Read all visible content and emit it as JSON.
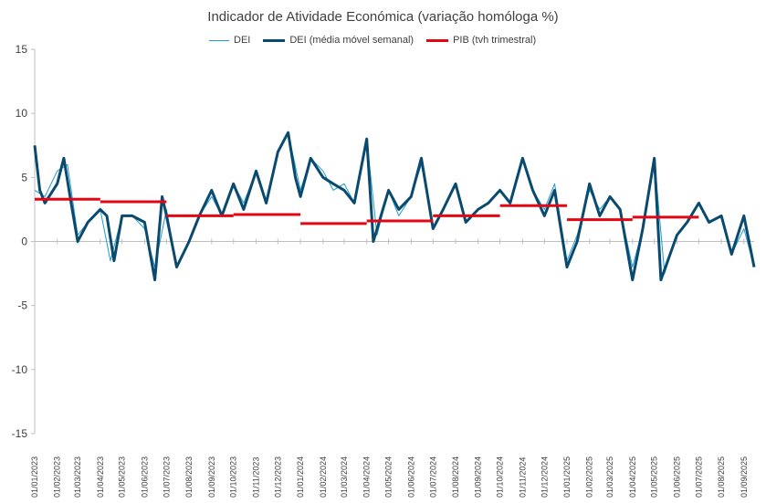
{
  "chart_data": {
    "type": "line",
    "title": "Indicador de Atividade Económica (variação homóloga %)",
    "xlabel": "",
    "ylabel": "",
    "ylim": [
      -15,
      15
    ],
    "yticks": [
      15,
      10,
      5,
      0,
      -5,
      -10,
      -15
    ],
    "x_tick_labels": [
      "01/01/2023",
      "01/02/2023",
      "01/03/2023",
      "01/04/2023",
      "01/05/2023",
      "01/06/2023",
      "01/07/2023",
      "01/08/2023",
      "01/09/2023",
      "01/10/2023",
      "01/11/2023",
      "01/12/2023",
      "01/01/2024",
      "01/02/2024",
      "01/03/2024",
      "01/04/2024",
      "01/05/2024",
      "01/06/2024",
      "01/07/2024",
      "01/08/2024",
      "01/09/2024",
      "01/10/2024",
      "01/11/2024",
      "01/12/2024",
      "01/01/2025",
      "01/02/2025",
      "01/03/2025",
      "01/04/2025",
      "01/05/2025",
      "01/06/2025",
      "01/07/2025",
      "01/08/2025",
      "01/09/2025"
    ],
    "x_start": "01/01/2023",
    "x_end": "15/09/2025",
    "legend_position": "top",
    "grid": false,
    "series": [
      {
        "name": "DEI",
        "style": "thin",
        "color": "#1E9BCF",
        "points": [
          [
            "01/01/2023",
            4.0
          ],
          [
            "15/01/2023",
            3.5
          ],
          [
            "01/02/2023",
            5.5
          ],
          [
            "15/02/2023",
            6.0
          ],
          [
            "01/03/2023",
            0.5
          ],
          [
            "15/03/2023",
            1.5
          ],
          [
            "01/04/2023",
            2.5
          ],
          [
            "15/04/2023",
            -1.5
          ],
          [
            "01/05/2023",
            2.0
          ],
          [
            "15/05/2023",
            2.0
          ],
          [
            "01/06/2023",
            1.0
          ],
          [
            "15/06/2023",
            -2.0
          ],
          [
            "01/07/2023",
            2.5
          ],
          [
            "15/07/2023",
            -2.0
          ],
          [
            "01/08/2023",
            0.0
          ],
          [
            "15/08/2023",
            2.0
          ],
          [
            "01/09/2023",
            3.5
          ],
          [
            "15/09/2023",
            2.0
          ],
          [
            "01/10/2023",
            4.5
          ],
          [
            "15/10/2023",
            3.0
          ],
          [
            "01/11/2023",
            5.5
          ],
          [
            "15/11/2023",
            3.0
          ],
          [
            "01/12/2023",
            7.0
          ],
          [
            "15/12/2023",
            8.5
          ],
          [
            "01/01/2024",
            4.0
          ],
          [
            "15/01/2024",
            6.5
          ],
          [
            "01/02/2024",
            5.5
          ],
          [
            "15/02/2024",
            4.0
          ],
          [
            "01/03/2024",
            4.5
          ],
          [
            "15/03/2024",
            3.0
          ],
          [
            "01/04/2024",
            8.0
          ],
          [
            "15/04/2024",
            0.5
          ],
          [
            "01/05/2024",
            4.0
          ],
          [
            "15/05/2024",
            2.0
          ],
          [
            "01/06/2024",
            3.5
          ],
          [
            "15/06/2024",
            6.0
          ],
          [
            "01/07/2024",
            1.0
          ],
          [
            "15/07/2024",
            2.5
          ],
          [
            "01/08/2024",
            4.5
          ],
          [
            "15/08/2024",
            1.5
          ],
          [
            "01/09/2024",
            2.5
          ],
          [
            "15/09/2024",
            3.0
          ],
          [
            "01/10/2024",
            4.0
          ],
          [
            "15/10/2024",
            3.0
          ],
          [
            "01/11/2024",
            6.5
          ],
          [
            "15/11/2024",
            4.0
          ],
          [
            "01/12/2024",
            2.5
          ],
          [
            "15/12/2024",
            4.5
          ],
          [
            "01/01/2025",
            -1.5
          ],
          [
            "15/01/2025",
            0.5
          ],
          [
            "01/02/2025",
            4.0
          ],
          [
            "15/02/2025",
            2.5
          ],
          [
            "01/03/2025",
            3.5
          ],
          [
            "15/03/2025",
            2.5
          ],
          [
            "01/04/2025",
            -2.0
          ],
          [
            "15/04/2025",
            1.0
          ],
          [
            "01/05/2025",
            6.5
          ],
          [
            "15/05/2025",
            -2.5
          ],
          [
            "01/06/2025",
            0.5
          ],
          [
            "15/06/2025",
            1.5
          ],
          [
            "01/07/2025",
            3.0
          ],
          [
            "15/07/2025",
            1.5
          ],
          [
            "01/08/2025",
            2.0
          ],
          [
            "15/08/2025",
            -1.0
          ],
          [
            "01/09/2025",
            1.0
          ],
          [
            "15/09/2025",
            -2.0
          ]
        ]
      },
      {
        "name": "DEI (média móvel semanal)",
        "style": "thick",
        "color": "#0A4A6E",
        "points": [
          [
            "01/01/2023",
            7.5
          ],
          [
            "08/01/2023",
            4.0
          ],
          [
            "15/01/2023",
            3.0
          ],
          [
            "01/02/2023",
            4.5
          ],
          [
            "10/02/2023",
            6.5
          ],
          [
            "20/02/2023",
            3.0
          ],
          [
            "01/03/2023",
            0.0
          ],
          [
            "15/03/2023",
            1.5
          ],
          [
            "01/04/2023",
            2.5
          ],
          [
            "10/04/2023",
            2.0
          ],
          [
            "20/04/2023",
            -1.5
          ],
          [
            "01/05/2023",
            2.0
          ],
          [
            "15/05/2023",
            2.0
          ],
          [
            "01/06/2023",
            1.5
          ],
          [
            "15/06/2023",
            -3.0
          ],
          [
            "25/06/2023",
            3.5
          ],
          [
            "01/07/2023",
            2.0
          ],
          [
            "15/07/2023",
            -2.0
          ],
          [
            "01/08/2023",
            0.0
          ],
          [
            "15/08/2023",
            2.0
          ],
          [
            "01/09/2023",
            4.0
          ],
          [
            "15/09/2023",
            2.0
          ],
          [
            "01/10/2023",
            4.5
          ],
          [
            "15/10/2023",
            2.5
          ],
          [
            "01/11/2023",
            5.5
          ],
          [
            "15/11/2023",
            3.0
          ],
          [
            "01/12/2023",
            7.0
          ],
          [
            "15/12/2023",
            8.5
          ],
          [
            "25/12/2023",
            5.0
          ],
          [
            "01/01/2024",
            3.5
          ],
          [
            "15/01/2024",
            6.5
          ],
          [
            "01/02/2024",
            5.0
          ],
          [
            "15/02/2024",
            4.5
          ],
          [
            "01/03/2024",
            4.0
          ],
          [
            "15/03/2024",
            3.0
          ],
          [
            "01/04/2024",
            8.0
          ],
          [
            "10/04/2024",
            0.0
          ],
          [
            "01/05/2024",
            4.0
          ],
          [
            "15/05/2024",
            2.5
          ],
          [
            "01/06/2024",
            3.5
          ],
          [
            "15/06/2024",
            6.5
          ],
          [
            "01/07/2024",
            1.0
          ],
          [
            "15/07/2024",
            2.5
          ],
          [
            "01/08/2024",
            4.5
          ],
          [
            "15/08/2024",
            1.5
          ],
          [
            "01/09/2024",
            2.5
          ],
          [
            "15/09/2024",
            3.0
          ],
          [
            "01/10/2024",
            4.0
          ],
          [
            "15/10/2024",
            3.0
          ],
          [
            "01/11/2024",
            6.5
          ],
          [
            "15/11/2024",
            4.0
          ],
          [
            "01/12/2024",
            2.0
          ],
          [
            "15/12/2024",
            4.0
          ],
          [
            "01/01/2025",
            -2.0
          ],
          [
            "15/01/2025",
            0.0
          ],
          [
            "01/02/2025",
            4.5
          ],
          [
            "15/02/2025",
            2.0
          ],
          [
            "01/03/2025",
            3.5
          ],
          [
            "15/03/2025",
            2.5
          ],
          [
            "01/04/2025",
            -3.0
          ],
          [
            "15/04/2025",
            1.0
          ],
          [
            "01/05/2025",
            6.5
          ],
          [
            "10/05/2025",
            -3.0
          ],
          [
            "01/06/2025",
            0.5
          ],
          [
            "15/06/2025",
            1.5
          ],
          [
            "01/07/2025",
            3.0
          ],
          [
            "15/07/2025",
            1.5
          ],
          [
            "01/08/2025",
            2.0
          ],
          [
            "15/08/2025",
            -1.0
          ],
          [
            "01/09/2025",
            2.0
          ],
          [
            "15/09/2025",
            -2.0
          ]
        ]
      },
      {
        "name": "PIB (tvh trimestral)",
        "style": "step",
        "color": "#E30613",
        "segments": [
          {
            "from": "01/01/2023",
            "to": "01/04/2023",
            "value": 3.3
          },
          {
            "from": "01/04/2023",
            "to": "01/07/2023",
            "value": 3.1
          },
          {
            "from": "01/07/2023",
            "to": "01/10/2023",
            "value": 2.0
          },
          {
            "from": "01/10/2023",
            "to": "01/01/2024",
            "value": 2.1
          },
          {
            "from": "01/01/2024",
            "to": "01/04/2024",
            "value": 1.4
          },
          {
            "from": "01/04/2024",
            "to": "01/07/2024",
            "value": 1.6
          },
          {
            "from": "01/07/2024",
            "to": "01/10/2024",
            "value": 2.0
          },
          {
            "from": "01/10/2024",
            "to": "01/01/2025",
            "value": 2.8
          },
          {
            "from": "01/01/2025",
            "to": "01/04/2025",
            "value": 1.7
          },
          {
            "from": "01/04/2025",
            "to": "01/07/2025",
            "value": 1.9
          }
        ]
      }
    ]
  }
}
